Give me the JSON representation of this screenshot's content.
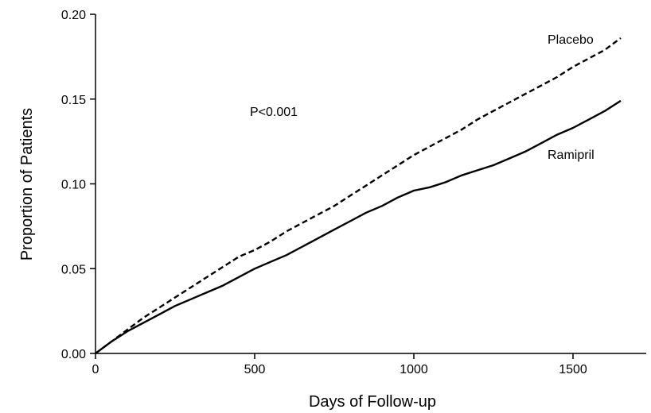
{
  "chart_data": {
    "type": "line",
    "title": "",
    "xlabel": "Days of Follow-up",
    "ylabel": "Proportion of Patients",
    "xlim": [
      0,
      1750
    ],
    "ylim": [
      0,
      0.2
    ],
    "xticks": [
      0,
      500,
      1000,
      1500
    ],
    "xtick_labels": [
      "0",
      "500",
      "1000",
      "1500"
    ],
    "yticks": [
      0,
      0.05,
      0.1,
      0.15,
      0.2
    ],
    "ytick_labels": [
      "0.00",
      "0.05",
      "0.10",
      "0.15",
      "0.20"
    ],
    "grid": false,
    "annotation": "P<0.001",
    "series": [
      {
        "name": "Placebo",
        "style": "dashed",
        "color": "#000000",
        "x": [
          0,
          50,
          100,
          150,
          200,
          250,
          300,
          350,
          400,
          450,
          500,
          550,
          600,
          650,
          700,
          750,
          800,
          850,
          900,
          950,
          1000,
          1050,
          1100,
          1150,
          1200,
          1250,
          1300,
          1350,
          1400,
          1450,
          1500,
          1550,
          1600,
          1650
        ],
        "y": [
          0,
          0.007,
          0.014,
          0.021,
          0.027,
          0.033,
          0.039,
          0.045,
          0.051,
          0.057,
          0.061,
          0.066,
          0.072,
          0.077,
          0.082,
          0.087,
          0.093,
          0.099,
          0.105,
          0.111,
          0.117,
          0.122,
          0.127,
          0.132,
          0.138,
          0.143,
          0.148,
          0.153,
          0.158,
          0.163,
          0.169,
          0.174,
          0.179,
          0.186
        ]
      },
      {
        "name": "Ramipril",
        "style": "solid",
        "color": "#000000",
        "x": [
          0,
          50,
          100,
          150,
          200,
          250,
          300,
          350,
          400,
          450,
          500,
          550,
          600,
          650,
          700,
          750,
          800,
          850,
          900,
          950,
          1000,
          1050,
          1100,
          1150,
          1200,
          1250,
          1300,
          1350,
          1400,
          1450,
          1500,
          1550,
          1600,
          1650
        ],
        "y": [
          0,
          0.007,
          0.013,
          0.018,
          0.023,
          0.028,
          0.032,
          0.036,
          0.04,
          0.045,
          0.05,
          0.054,
          0.058,
          0.063,
          0.068,
          0.073,
          0.078,
          0.083,
          0.087,
          0.092,
          0.096,
          0.098,
          0.101,
          0.105,
          0.108,
          0.111,
          0.115,
          0.119,
          0.124,
          0.129,
          0.133,
          0.138,
          0.143,
          0.149
        ]
      }
    ]
  }
}
